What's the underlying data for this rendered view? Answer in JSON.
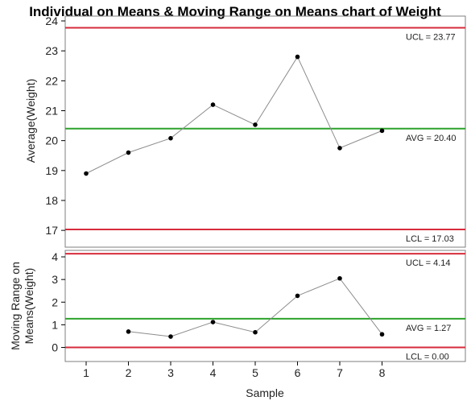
{
  "chart_data": {
    "title": "Individual on Means & Moving Range on Means chart of Weight",
    "xlabel": "Sample",
    "x": [
      1,
      2,
      3,
      4,
      5,
      6,
      7,
      8
    ],
    "x_ticks": [
      "1",
      "2",
      "3",
      "4",
      "5",
      "6",
      "7",
      "8"
    ],
    "panels": [
      {
        "type": "line",
        "ylabel": "Average(Weight)",
        "ylim": [
          16.6,
          24.0
        ],
        "y_ticks": [
          "17",
          "18",
          "19",
          "20",
          "21",
          "22",
          "23",
          "24"
        ],
        "x": [
          1,
          2,
          3,
          4,
          5,
          6,
          7,
          8
        ],
        "values": [
          18.9,
          19.6,
          20.08,
          21.2,
          20.53,
          22.8,
          19.75,
          20.33
        ],
        "limits": [
          {
            "kind": "UCL",
            "value": 23.77,
            "label": "UCL = 23.77",
            "color": "#d62b3b"
          },
          {
            "kind": "AVG",
            "value": 20.4,
            "label": "AVG = 20.40",
            "color": "#2ca22c"
          },
          {
            "kind": "LCL",
            "value": 17.03,
            "label": "LCL = 17.03",
            "color": "#d62b3b"
          }
        ]
      },
      {
        "type": "line",
        "ylabel": "Moving Range on Means(Weight)",
        "ylabel_lines": [
          "Moving Range on",
          "Means(Weight)"
        ],
        "ylim": [
          -0.55,
          4.25
        ],
        "y_ticks": [
          "0",
          "1",
          "2",
          "3",
          "4"
        ],
        "x": [
          2,
          3,
          4,
          5,
          6,
          7,
          8
        ],
        "values": [
          0.7,
          0.48,
          1.12,
          0.67,
          2.28,
          3.05,
          0.58
        ],
        "limits": [
          {
            "kind": "UCL",
            "value": 4.14,
            "label": "UCL = 4.14",
            "color": "#d62b3b"
          },
          {
            "kind": "AVG",
            "value": 1.27,
            "label": "AVG = 1.27",
            "color": "#2ca22c"
          },
          {
            "kind": "LCL",
            "value": 0.0,
            "label": "LCL = 0.00",
            "color": "#d62b3b"
          }
        ]
      }
    ],
    "line_color": "#8c8c8c",
    "point_color": "#000000",
    "grid": false,
    "legend": "none"
  }
}
